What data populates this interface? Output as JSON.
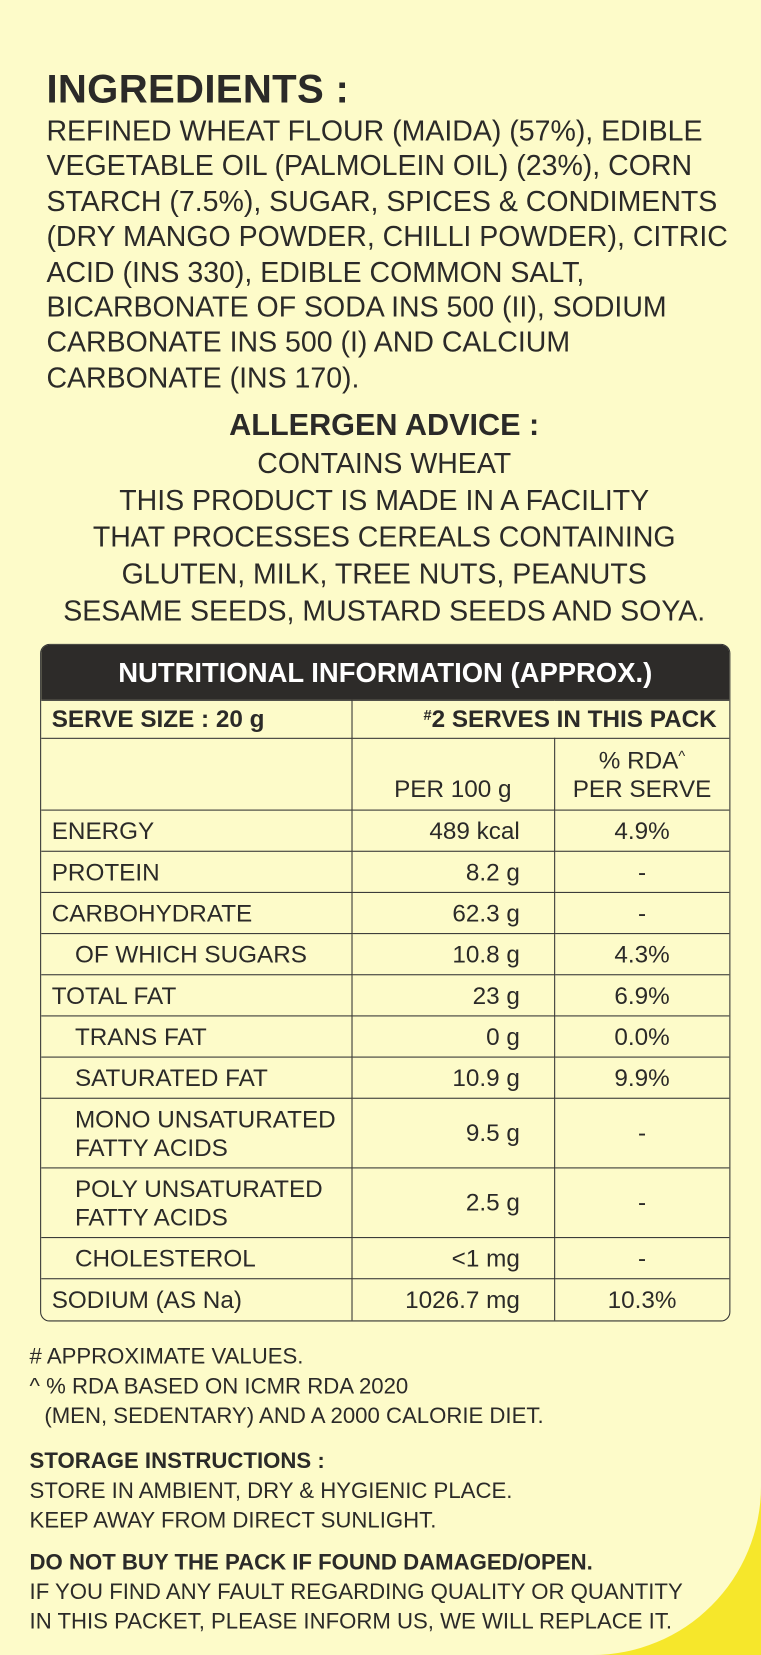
{
  "ingredients": {
    "title": "INGREDIENTS :",
    "lines": [
      "REFINED WHEAT FLOUR (MAIDA) (57%), EDIBLE",
      "VEGETABLE OIL (PALMOLEIN OIL) (23%), CORN",
      "STARCH (7.5%), SUGAR, SPICES & CONDIMENTS",
      "(DRY MANGO POWDER, CHILLI POWDER), CITRIC",
      "ACID (INS 330), EDIBLE COMMON SALT,",
      "BICARBONATE OF SODA INS 500 (II), SODIUM",
      "CARBONATE INS 500 (I) AND CALCIUM",
      "CARBONATE (INS 170)."
    ]
  },
  "allergen": {
    "title": "ALLERGEN ADVICE :",
    "lines": [
      "CONTAINS WHEAT",
      "THIS PRODUCT IS MADE IN A FACILITY",
      "THAT PROCESSES CEREALS CONTAINING",
      "GLUTEN, MILK, TREE NUTS, PEANUTS",
      "SESAME SEEDS, MUSTARD SEEDS AND SOYA."
    ]
  },
  "nutrition": {
    "title": "NUTRITIONAL INFORMATION (APPROX.)",
    "serve_size": "SERVE SIZE : 20 g",
    "serves_mark": "#",
    "serves": "2 SERVES IN THIS PACK",
    "per_100g_header": "PER 100 g",
    "rda_header": "% RDA",
    "rda_mark": "^",
    "rda_header_2": "PER SERVE",
    "rows": [
      {
        "label": [
          "ENERGY"
        ],
        "per_100g": "489 kcal",
        "rda": "4.9%",
        "indent": false
      },
      {
        "label": [
          "PROTEIN"
        ],
        "per_100g": "8.2 g",
        "rda": "-",
        "indent": false
      },
      {
        "label": [
          "CARBOHYDRATE"
        ],
        "per_100g": "62.3 g",
        "rda": "-",
        "indent": false
      },
      {
        "label": [
          "OF WHICH SUGARS"
        ],
        "per_100g": "10.8 g",
        "rda": "4.3%",
        "indent": true
      },
      {
        "label": [
          "TOTAL FAT"
        ],
        "per_100g": "23 g",
        "rda": "6.9%",
        "indent": false
      },
      {
        "label": [
          "TRANS FAT"
        ],
        "per_100g": "0 g",
        "rda": "0.0%",
        "indent": true
      },
      {
        "label": [
          "SATURATED FAT"
        ],
        "per_100g": "10.9 g",
        "rda": "9.9%",
        "indent": true
      },
      {
        "label": [
          "MONO UNSATURATED",
          "FATTY ACIDS"
        ],
        "per_100g": "9.5 g",
        "rda": "-",
        "indent": true
      },
      {
        "label": [
          "POLY UNSATURATED",
          "FATTY ACIDS"
        ],
        "per_100g": "2.5 g",
        "rda": "-",
        "indent": true
      },
      {
        "label": [
          "CHOLESTEROL"
        ],
        "per_100g": "<1 mg",
        "rda": "-",
        "indent": true
      },
      {
        "label": [
          "SODIUM (AS Na)"
        ],
        "per_100g": "1026.7 mg",
        "rda": "10.3%",
        "indent": false
      }
    ]
  },
  "footnotes": [
    "# APPROXIMATE VALUES.",
    "^ % RDA BASED ON ICMR RDA 2020",
    "(MEN, SEDENTARY) AND A 2000 CALORIE DIET."
  ],
  "storage": {
    "title": "STORAGE INSTRUCTIONS :",
    "lines": [
      "STORE IN AMBIENT, DRY & HYGIENIC PLACE.",
      "KEEP AWAY FROM DIRECT SUNLIGHT."
    ]
  },
  "warning": {
    "title": "DO NOT BUY THE PACK IF FOUND DAMAGED/OPEN.",
    "lines": [
      "IF YOU FIND ANY FAULT REGARDING QUALITY OR QUANTITY",
      "IN THIS PACKET, PLEASE INFORM US, WE WILL REPLACE IT."
    ]
  }
}
